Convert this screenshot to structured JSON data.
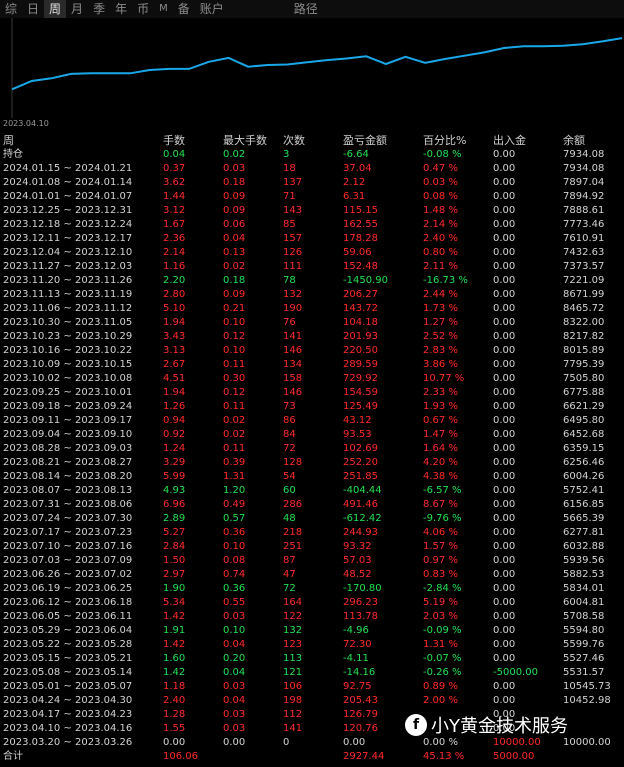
{
  "tabs": [
    {
      "label": "综",
      "active": false
    },
    {
      "label": "日",
      "active": false
    },
    {
      "label": "周",
      "active": true
    },
    {
      "label": "月",
      "active": false
    },
    {
      "label": "季",
      "active": false
    },
    {
      "label": "年",
      "active": false
    },
    {
      "label": "币",
      "active": false
    },
    {
      "label": "M",
      "active": false
    },
    {
      "label": "备",
      "active": false
    },
    {
      "label": "账户",
      "active": false
    },
    {
      "label": "路径",
      "active": false
    }
  ],
  "chart": {
    "start_date": "2023.04.10",
    "line_color": "#1aa7e8",
    "series": [
      4.5,
      6.0,
      6.5,
      7.3,
      7.4,
      7.4,
      7.4,
      8.0,
      8.2,
      8.2,
      9.5,
      10.2,
      8.6,
      8.9,
      9.0,
      9.4,
      9.8,
      10.1,
      10.5,
      9.1,
      10.4,
      9.3,
      10.0,
      10.6,
      11.2,
      12.0,
      12.3,
      12.3,
      12.4,
      12.7,
      13.2,
      13.8
    ]
  },
  "headers": {
    "period": "周",
    "lots": "手数",
    "max_lots": "最大手数",
    "count": "次数",
    "profit": "盈亏金额",
    "pct": "百分比%",
    "deposit": "出入金",
    "balance": "余额"
  },
  "rows": [
    {
      "p": "持仓",
      "l": "0.04",
      "m": "0.02",
      "n": "3",
      "pr": "-6.64",
      "pc": "-0.08 %",
      "d": "0.00",
      "b": "7934.08",
      "t": "neg"
    },
    {
      "p": "2024.01.15 ~ 2024.01.21",
      "l": "0.37",
      "m": "0.03",
      "n": "18",
      "pr": "37.04",
      "pc": "0.47 %",
      "d": "0.00",
      "b": "7934.08",
      "t": "pos"
    },
    {
      "p": "2024.01.08 ~ 2024.01.14",
      "l": "3.62",
      "m": "0.18",
      "n": "137",
      "pr": "2.12",
      "pc": "0.03 %",
      "d": "0.00",
      "b": "7897.04",
      "t": "pos"
    },
    {
      "p": "2024.01.01 ~ 2024.01.07",
      "l": "1.44",
      "m": "0.09",
      "n": "71",
      "pr": "6.31",
      "pc": "0.08 %",
      "d": "0.00",
      "b": "7894.92",
      "t": "pos"
    },
    {
      "p": "2023.12.25 ~ 2023.12.31",
      "l": "3.12",
      "m": "0.09",
      "n": "143",
      "pr": "115.15",
      "pc": "1.48 %",
      "d": "0.00",
      "b": "7888.61",
      "t": "pos"
    },
    {
      "p": "2023.12.18 ~ 2023.12.24",
      "l": "1.67",
      "m": "0.06",
      "n": "85",
      "pr": "162.55",
      "pc": "2.14 %",
      "d": "0.00",
      "b": "7773.46",
      "t": "pos"
    },
    {
      "p": "2023.12.11 ~ 2023.12.17",
      "l": "2.36",
      "m": "0.04",
      "n": "157",
      "pr": "178.28",
      "pc": "2.40 %",
      "d": "0.00",
      "b": "7610.91",
      "t": "pos"
    },
    {
      "p": "2023.12.04 ~ 2023.12.10",
      "l": "2.14",
      "m": "0.13",
      "n": "126",
      "pr": "59.06",
      "pc": "0.80 %",
      "d": "0.00",
      "b": "7432.63",
      "t": "pos"
    },
    {
      "p": "2023.11.27 ~ 2023.12.03",
      "l": "1.16",
      "m": "0.02",
      "n": "111",
      "pr": "152.48",
      "pc": "2.11 %",
      "d": "0.00",
      "b": "7373.57",
      "t": "pos"
    },
    {
      "p": "2023.11.20 ~ 2023.11.26",
      "l": "2.20",
      "m": "0.18",
      "n": "78",
      "pr": "-1450.90",
      "pc": "-16.73 %",
      "d": "0.00",
      "b": "7221.09",
      "t": "neg"
    },
    {
      "p": "2023.11.13 ~ 2023.11.19",
      "l": "2.80",
      "m": "0.09",
      "n": "132",
      "pr": "206.27",
      "pc": "2.44 %",
      "d": "0.00",
      "b": "8671.99",
      "t": "pos"
    },
    {
      "p": "2023.11.06 ~ 2023.11.12",
      "l": "5.10",
      "m": "0.21",
      "n": "190",
      "pr": "143.72",
      "pc": "1.73 %",
      "d": "0.00",
      "b": "8465.72",
      "t": "pos"
    },
    {
      "p": "2023.10.30 ~ 2023.11.05",
      "l": "1.94",
      "m": "0.10",
      "n": "76",
      "pr": "104.18",
      "pc": "1.27 %",
      "d": "0.00",
      "b": "8322.00",
      "t": "pos"
    },
    {
      "p": "2023.10.23 ~ 2023.10.29",
      "l": "3.43",
      "m": "0.12",
      "n": "141",
      "pr": "201.93",
      "pc": "2.52 %",
      "d": "0.00",
      "b": "8217.82",
      "t": "pos"
    },
    {
      "p": "2023.10.16 ~ 2023.10.22",
      "l": "3.13",
      "m": "0.10",
      "n": "146",
      "pr": "220.50",
      "pc": "2.83 %",
      "d": "0.00",
      "b": "8015.89",
      "t": "pos"
    },
    {
      "p": "2023.10.09 ~ 2023.10.15",
      "l": "2.67",
      "m": "0.11",
      "n": "134",
      "pr": "289.59",
      "pc": "3.86 %",
      "d": "0.00",
      "b": "7795.39",
      "t": "pos"
    },
    {
      "p": "2023.10.02 ~ 2023.10.08",
      "l": "4.51",
      "m": "0.30",
      "n": "158",
      "pr": "729.92",
      "pc": "10.77 %",
      "d": "0.00",
      "b": "7505.80",
      "t": "pos"
    },
    {
      "p": "2023.09.25 ~ 2023.10.01",
      "l": "1.94",
      "m": "0.12",
      "n": "146",
      "pr": "154.59",
      "pc": "2.33 %",
      "d": "0.00",
      "b": "6775.88",
      "t": "pos"
    },
    {
      "p": "2023.09.18 ~ 2023.09.24",
      "l": "1.26",
      "m": "0.11",
      "n": "73",
      "pr": "125.49",
      "pc": "1.93 %",
      "d": "0.00",
      "b": "6621.29",
      "t": "pos"
    },
    {
      "p": "2023.09.11 ~ 2023.09.17",
      "l": "0.94",
      "m": "0.02",
      "n": "86",
      "pr": "43.12",
      "pc": "0.67 %",
      "d": "0.00",
      "b": "6495.80",
      "t": "pos"
    },
    {
      "p": "2023.09.04 ~ 2023.09.10",
      "l": "0.92",
      "m": "0.02",
      "n": "84",
      "pr": "93.53",
      "pc": "1.47 %",
      "d": "0.00",
      "b": "6452.68",
      "t": "pos"
    },
    {
      "p": "2023.08.28 ~ 2023.09.03",
      "l": "1.24",
      "m": "0.11",
      "n": "72",
      "pr": "102.69",
      "pc": "1.64 %",
      "d": "0.00",
      "b": "6359.15",
      "t": "pos"
    },
    {
      "p": "2023.08.21 ~ 2023.08.27",
      "l": "3.29",
      "m": "0.39",
      "n": "128",
      "pr": "252.20",
      "pc": "4.20 %",
      "d": "0.00",
      "b": "6256.46",
      "t": "pos"
    },
    {
      "p": "2023.08.14 ~ 2023.08.20",
      "l": "5.99",
      "m": "1.31",
      "n": "54",
      "pr": "251.85",
      "pc": "4.38 %",
      "d": "0.00",
      "b": "6004.26",
      "t": "pos"
    },
    {
      "p": "2023.08.07 ~ 2023.08.13",
      "l": "4.93",
      "m": "1.20",
      "n": "60",
      "pr": "-404.44",
      "pc": "-6.57 %",
      "d": "0.00",
      "b": "5752.41",
      "t": "neg"
    },
    {
      "p": "2023.07.31 ~ 2023.08.06",
      "l": "6.96",
      "m": "0.49",
      "n": "286",
      "pr": "491.46",
      "pc": "8.67 %",
      "d": "0.00",
      "b": "6156.85",
      "t": "pos"
    },
    {
      "p": "2023.07.24 ~ 2023.07.30",
      "l": "2.89",
      "m": "0.57",
      "n": "48",
      "pr": "-612.42",
      "pc": "-9.76 %",
      "d": "0.00",
      "b": "5665.39",
      "t": "neg"
    },
    {
      "p": "2023.07.17 ~ 2023.07.23",
      "l": "5.27",
      "m": "0.36",
      "n": "218",
      "pr": "244.93",
      "pc": "4.06 %",
      "d": "0.00",
      "b": "6277.81",
      "t": "pos"
    },
    {
      "p": "2023.07.10 ~ 2023.07.16",
      "l": "2.84",
      "m": "0.10",
      "n": "251",
      "pr": "93.32",
      "pc": "1.57 %",
      "d": "0.00",
      "b": "6032.88",
      "t": "pos"
    },
    {
      "p": "2023.07.03 ~ 2023.07.09",
      "l": "1.50",
      "m": "0.08",
      "n": "87",
      "pr": "57.03",
      "pc": "0.97 %",
      "d": "0.00",
      "b": "5939.56",
      "t": "pos"
    },
    {
      "p": "2023.06.26 ~ 2023.07.02",
      "l": "2.97",
      "m": "0.74",
      "n": "47",
      "pr": "48.52",
      "pc": "0.83 %",
      "d": "0.00",
      "b": "5882.53",
      "t": "pos"
    },
    {
      "p": "2023.06.19 ~ 2023.06.25",
      "l": "1.90",
      "m": "0.36",
      "n": "72",
      "pr": "-170.80",
      "pc": "-2.84 %",
      "d": "0.00",
      "b": "5834.01",
      "t": "neg"
    },
    {
      "p": "2023.06.12 ~ 2023.06.18",
      "l": "5.34",
      "m": "0.55",
      "n": "164",
      "pr": "296.23",
      "pc": "5.19 %",
      "d": "0.00",
      "b": "6004.81",
      "t": "pos"
    },
    {
      "p": "2023.06.05 ~ 2023.06.11",
      "l": "1.42",
      "m": "0.03",
      "n": "122",
      "pr": "113.78",
      "pc": "2.03 %",
      "d": "0.00",
      "b": "5708.58",
      "t": "pos"
    },
    {
      "p": "2023.05.29 ~ 2023.06.04",
      "l": "1.91",
      "m": "0.10",
      "n": "132",
      "pr": "-4.96",
      "pc": "-0.09 %",
      "d": "0.00",
      "b": "5594.80",
      "t": "neg"
    },
    {
      "p": "2023.05.22 ~ 2023.05.28",
      "l": "1.42",
      "m": "0.04",
      "n": "123",
      "pr": "72.30",
      "pc": "1.31 %",
      "d": "0.00",
      "b": "5599.76",
      "t": "pos"
    },
    {
      "p": "2023.05.15 ~ 2023.05.21",
      "l": "1.60",
      "m": "0.20",
      "n": "113",
      "pr": "-4.11",
      "pc": "-0.07 %",
      "d": "0.00",
      "b": "5527.46",
      "t": "neg"
    },
    {
      "p": "2023.05.08 ~ 2023.05.14",
      "l": "1.42",
      "m": "0.04",
      "n": "121",
      "pr": "-14.16",
      "pc": "-0.26 %",
      "d": "-5000.00",
      "b": "5531.57",
      "t": "neg"
    },
    {
      "p": "2023.05.01 ~ 2023.05.07",
      "l": "1.18",
      "m": "0.03",
      "n": "106",
      "pr": "92.75",
      "pc": "0.89 %",
      "d": "0.00",
      "b": "10545.73",
      "t": "pos"
    },
    {
      "p": "2023.04.24 ~ 2023.04.30",
      "l": "2.40",
      "m": "0.04",
      "n": "198",
      "pr": "205.43",
      "pc": "2.00 %",
      "d": "0.00",
      "b": "10452.98",
      "t": "pos"
    },
    {
      "p": "2023.04.17 ~ 2023.04.23",
      "l": "1.28",
      "m": "0.03",
      "n": "112",
      "pr": "126.79",
      "pc": "",
      "d": "0.00",
      "b": "",
      "t": "pos"
    },
    {
      "p": "2023.04.10 ~ 2023.04.16",
      "l": "1.55",
      "m": "0.03",
      "n": "141",
      "pr": "120.76",
      "pc": "",
      "d": "0.00",
      "b": "",
      "t": "pos"
    },
    {
      "p": "2023.03.20 ~ 2023.03.26",
      "l": "0.00",
      "m": "0.00",
      "n": "0",
      "pr": "0.00",
      "pc": "0.00 %",
      "d": "10000.00",
      "b": "10000.00",
      "t": "neu"
    }
  ],
  "total": {
    "p": "合计",
    "l": "106.06",
    "m": "",
    "n": "",
    "pr": "2927.44",
    "pc": "45.13 %",
    "d": "5000.00",
    "b": ""
  },
  "watermark": {
    "text": "小Y黄金技术服务",
    "icon": "facebook-icon"
  }
}
